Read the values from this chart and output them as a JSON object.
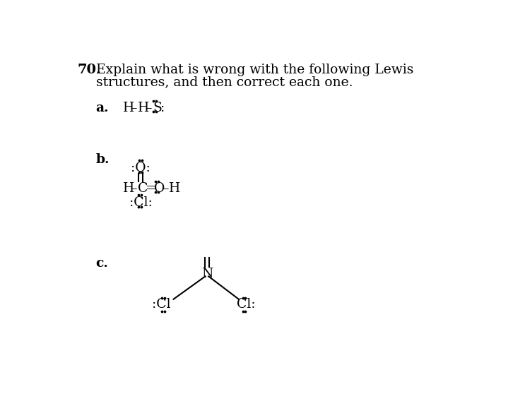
{
  "background_color": "#ffffff",
  "fig_width": 7.43,
  "fig_height": 5.92,
  "dpi": 100,
  "number_text": "70.",
  "title_text": "Explain what is wrong with the following Lewis",
  "title2_text": "structures, and then correct each one.",
  "title_fontsize": 13.5,
  "number_fontsize": 14,
  "label_fontsize": 13.5,
  "chem_fontsize": 13.5
}
